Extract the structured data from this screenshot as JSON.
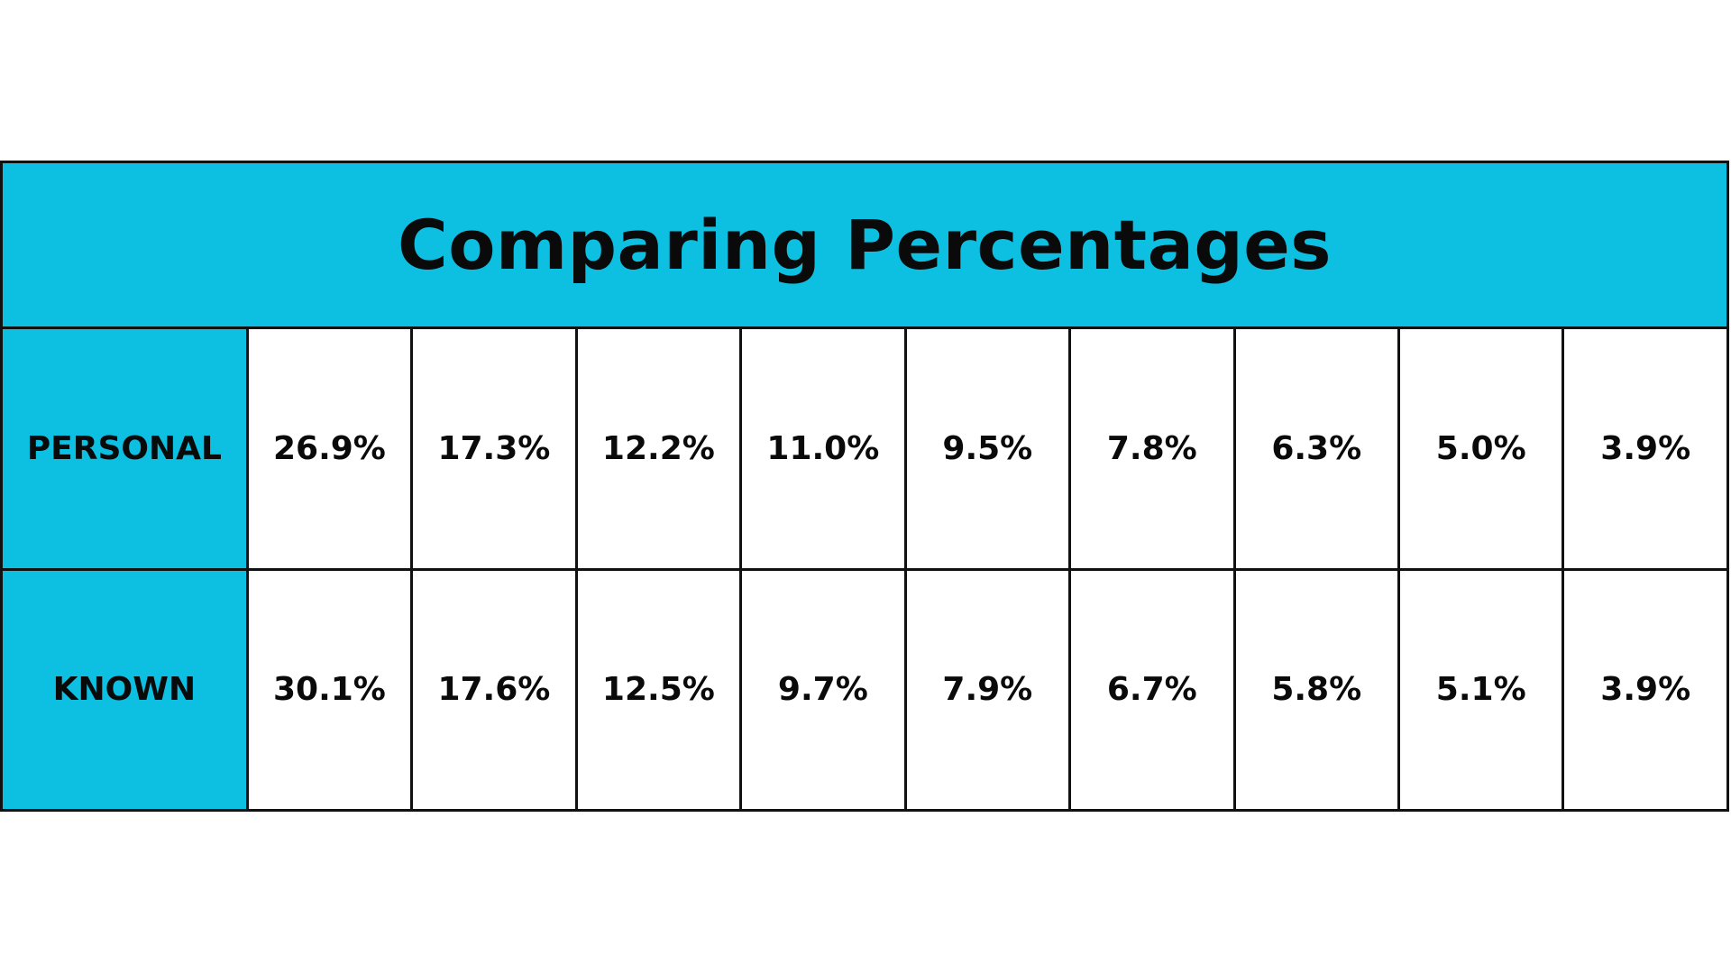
{
  "colors": {
    "header_bg": "#0dbfe0",
    "cell_bg": "#ffffff",
    "border": "#111111",
    "text": "#0a0a0a"
  },
  "chart_data": {
    "type": "table",
    "title": "Comparing Percentages",
    "rows": [
      {
        "label": "PERSONAL",
        "values": [
          "26.9%",
          "17.3%",
          "12.2%",
          "11.0%",
          "9.5%",
          "7.8%",
          "6.3%",
          "5.0%",
          "3.9%"
        ]
      },
      {
        "label": "KNOWN",
        "values": [
          "30.1%",
          "17.6%",
          "12.5%",
          "9.7%",
          "7.9%",
          "6.7%",
          "5.8%",
          "5.1%",
          "3.9%"
        ]
      }
    ]
  }
}
